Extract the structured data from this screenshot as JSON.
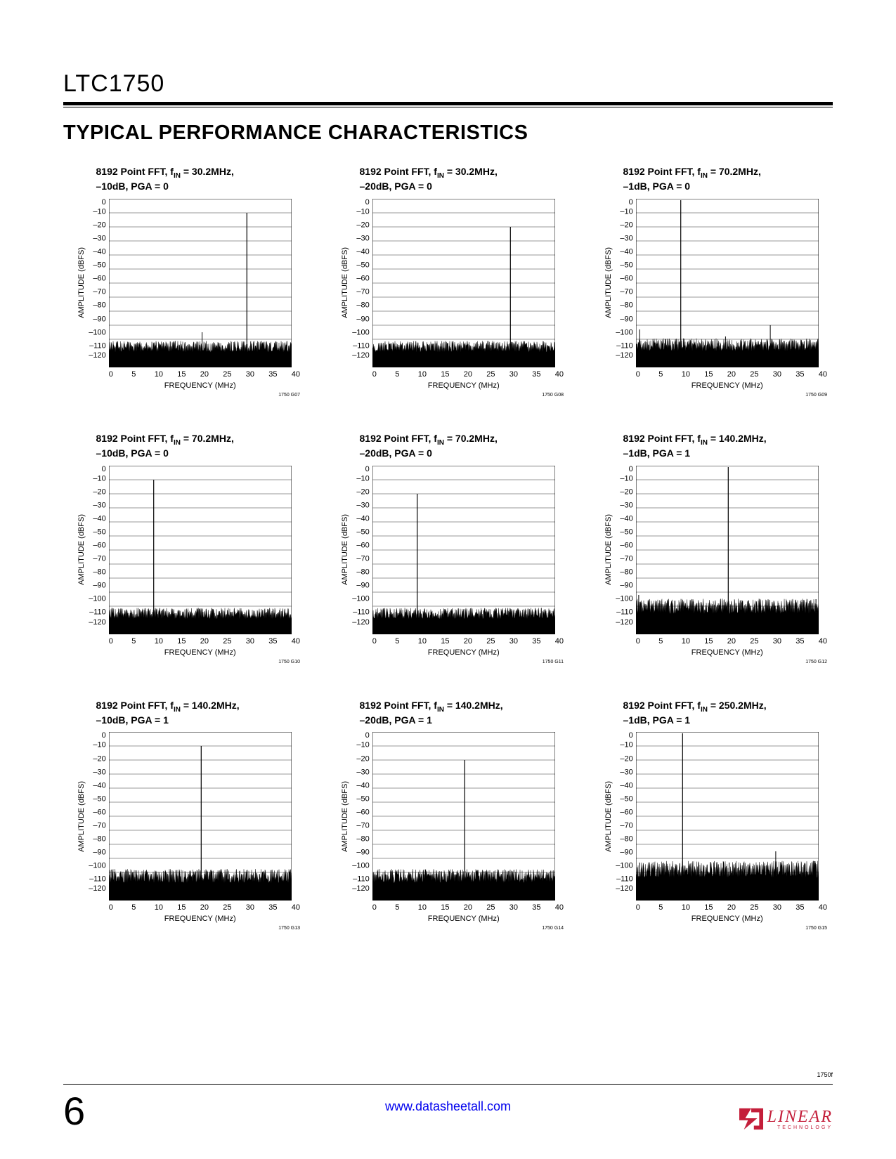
{
  "part_number": "LTC1750",
  "section_heading": "TYPICAL PERFORMANCE CHARACTERISTICS",
  "page_number": "6",
  "footer_url": "www.datasheetall.com",
  "doc_rev": "1750f",
  "logo": {
    "main": "LINEAR",
    "sub": "TECHNOLOGY",
    "color": "#c41e3a"
  },
  "axes": {
    "xlabel": "FREQUENCY (MHz)",
    "ylabel": "AMPLITUDE (dBFS)",
    "xlim": [
      0,
      40
    ],
    "xtick_step": 5,
    "xticks": [
      "0",
      "5",
      "10",
      "15",
      "20",
      "25",
      "30",
      "35",
      "40"
    ],
    "ylim": [
      -120,
      0
    ],
    "ytick_step": 10,
    "yticks": [
      "0",
      "–10",
      "–20",
      "–30",
      "–40",
      "–50",
      "–60",
      "–70",
      "–80",
      "–90",
      "–100",
      "–110",
      "–120"
    ],
    "grid_color": "#000000",
    "grid_width": 0.5,
    "background_color": "#ffffff",
    "label_fontsize": 11,
    "tick_fontsize": 11
  },
  "charts": [
    {
      "title_prefix": "8192 Point FFT, f",
      "title_sub": "IN",
      "title_rest": " = 30.2MHz,",
      "title_line2": "–10dB, PGA = 0",
      "fig_id": "1750 G07",
      "signal_freq": 30.2,
      "signal_db": -10,
      "noise_floor_db": -108,
      "noise_band_db": 8,
      "harmonics": [
        {
          "freq": 20.4,
          "db": -95
        }
      ]
    },
    {
      "title_prefix": "8192 Point FFT, f",
      "title_sub": "IN",
      "title_rest": " = 30.2MHz,",
      "title_line2": "–20dB, PGA = 0",
      "fig_id": "1750 G08",
      "signal_freq": 30.2,
      "signal_db": -20,
      "noise_floor_db": -108,
      "noise_band_db": 8,
      "harmonics": []
    },
    {
      "title_prefix": "8192 Point FFT, f",
      "title_sub": "IN",
      "title_rest": " = 70.2MHz,",
      "title_line2": "–1dB, PGA = 0",
      "fig_id": "1750 G09",
      "signal_freq": 9.8,
      "signal_db": -1,
      "noise_floor_db": -107,
      "noise_band_db": 9,
      "harmonics": [
        {
          "freq": 19.6,
          "db": -98
        },
        {
          "freq": 29.4,
          "db": -90
        },
        {
          "freq": 0.8,
          "db": -93
        }
      ]
    },
    {
      "title_prefix": "8192 Point FFT, f",
      "title_sub": "IN",
      "title_rest": " = 70.2MHz,",
      "title_line2": "–10dB, PGA = 0",
      "fig_id": "1750 G10",
      "signal_freq": 9.8,
      "signal_db": -10,
      "noise_floor_db": -108,
      "noise_band_db": 8,
      "harmonics": []
    },
    {
      "title_prefix": "8192 Point FFT, f",
      "title_sub": "IN",
      "title_rest": " = 70.2MHz,",
      "title_line2": "–20dB, PGA = 0",
      "fig_id": "1750 G11",
      "signal_freq": 9.8,
      "signal_db": -20,
      "noise_floor_db": -108,
      "noise_band_db": 8,
      "harmonics": []
    },
    {
      "title_prefix": "8192 Point FFT, f",
      "title_sub": "IN",
      "title_rest": " = 140.2MHz,",
      "title_line2": "–1dB, PGA = 1",
      "fig_id": "1750 G12",
      "signal_freq": 20.2,
      "signal_db": -1,
      "noise_floor_db": -104,
      "noise_band_db": 11,
      "harmonics": [
        {
          "freq": 0.6,
          "db": -92
        },
        {
          "freq": 39.4,
          "db": -95
        }
      ]
    },
    {
      "title_prefix": "8192 Point FFT, f",
      "title_sub": "IN",
      "title_rest": " = 140.2MHz,",
      "title_line2": "–10dB, PGA = 1",
      "fig_id": "1750 G13",
      "signal_freq": 20.2,
      "signal_db": -10,
      "noise_floor_db": -106,
      "noise_band_db": 10,
      "harmonics": [
        {
          "freq": 0.6,
          "db": -98
        }
      ]
    },
    {
      "title_prefix": "8192 Point FFT, f",
      "title_sub": "IN",
      "title_rest": " = 140.2MHz,",
      "title_line2": "–20dB, PGA = 1",
      "fig_id": "1750 G14",
      "signal_freq": 20.2,
      "signal_db": -20,
      "noise_floor_db": -106,
      "noise_band_db": 10,
      "harmonics": []
    },
    {
      "title_prefix": "8192 Point FFT, f",
      "title_sub": "IN",
      "title_rest": " = 250.2MHz,",
      "title_line2": "–1dB, PGA = 1",
      "fig_id": "1750 G15",
      "signal_freq": 10.2,
      "signal_db": -1,
      "noise_floor_db": -102,
      "noise_band_db": 12,
      "harmonics": [
        {
          "freq": 20.4,
          "db": -93
        },
        {
          "freq": 30.6,
          "db": -85
        },
        {
          "freq": 0.8,
          "db": -93
        },
        {
          "freq": 39.2,
          "db": -92
        }
      ]
    }
  ]
}
